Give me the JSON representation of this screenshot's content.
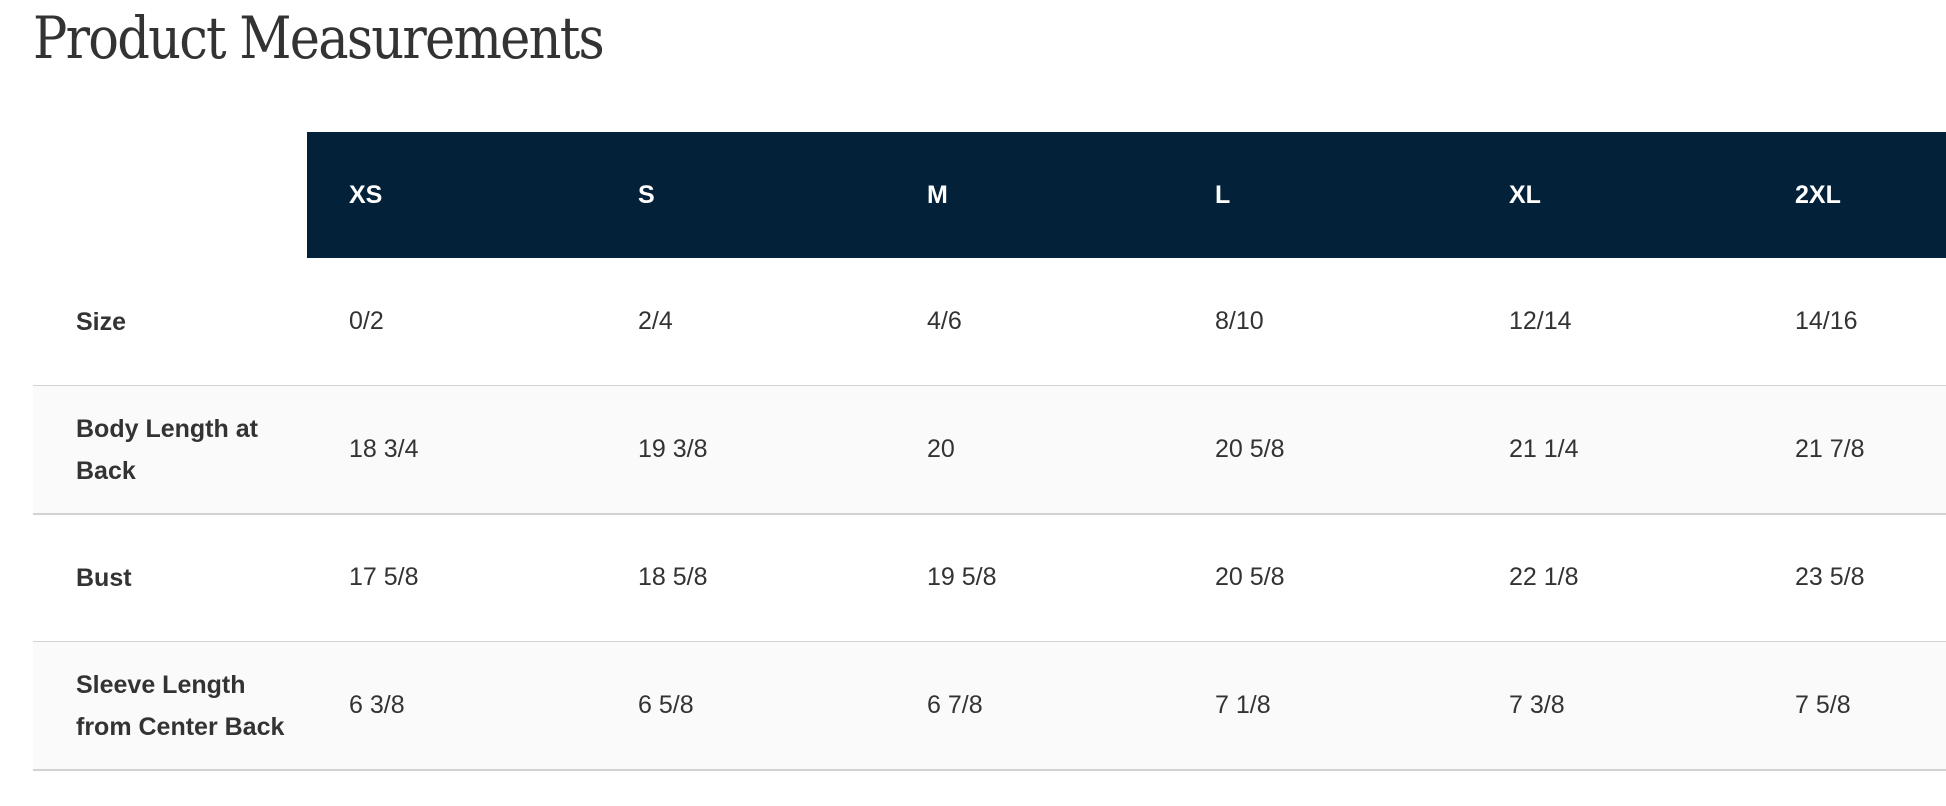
{
  "title": "Product Measurements",
  "colors": {
    "header_bg": "#03223a",
    "header_text": "#ffffff",
    "row_alt_bg": "#fafafa",
    "divider": "#d2d2d2"
  },
  "columns": [
    "XS",
    "S",
    "M",
    "L",
    "XL",
    "2XL"
  ],
  "rows": [
    {
      "label": "Size",
      "values": [
        "0/2",
        "2/4",
        "4/6",
        "8/10",
        "12/14",
        "14/16"
      ]
    },
    {
      "label": "Body Length at Back",
      "values": [
        "18 3/4",
        "19 3/8",
        "20",
        "20 5/8",
        "21 1/4",
        "21 7/8"
      ]
    },
    {
      "label": "Bust",
      "values": [
        "17 5/8",
        "18 5/8",
        "19 5/8",
        "20 5/8",
        "22 1/8",
        "23 5/8"
      ]
    },
    {
      "label": "Sleeve Length from Center Back",
      "values": [
        "6 3/8",
        "6 5/8",
        "6 7/8",
        "7 1/8",
        "7 3/8",
        "7 5/8"
      ]
    }
  ]
}
